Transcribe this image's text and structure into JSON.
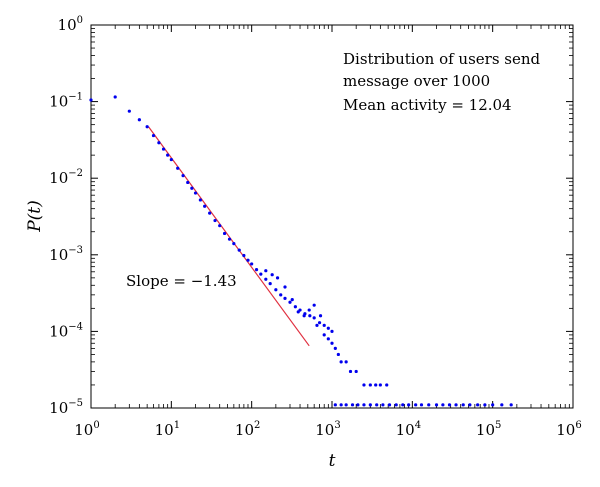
{
  "chart_data": {
    "type": "scatter",
    "xlabel": "t",
    "ylabel": "P(t)",
    "x_scale": "log",
    "y_scale": "log",
    "xlim": [
      1,
      1000000
    ],
    "ylim": [
      1e-05,
      1
    ],
    "grid": false,
    "x_tick_labels": [
      {
        "base": "10",
        "exp": "0"
      },
      {
        "base": "10",
        "exp": "1"
      },
      {
        "base": "10",
        "exp": "2"
      },
      {
        "base": "10",
        "exp": "3"
      },
      {
        "base": "10",
        "exp": "4"
      },
      {
        "base": "10",
        "exp": "5"
      },
      {
        "base": "10",
        "exp": "6"
      }
    ],
    "y_tick_labels": [
      {
        "base": "10",
        "exp": "−5"
      },
      {
        "base": "10",
        "exp": "−4"
      },
      {
        "base": "10",
        "exp": "−3"
      },
      {
        "base": "10",
        "exp": "−2"
      },
      {
        "base": "10",
        "exp": "−1"
      },
      {
        "base": "10",
        "exp": "0"
      }
    ],
    "annotations": {
      "title_line1": "Distribution of users send",
      "title_line2": "message over 1000",
      "mean": "Mean activity = 12.04",
      "slope": "Slope = −1.43"
    },
    "fit_line": {
      "slope": -1.43,
      "x_start": 5.2,
      "x_end": 520,
      "y_start": 0.047,
      "color": "#e03040"
    },
    "marker_color": "#0000ee",
    "series": [
      {
        "points": [
          [
            1.0,
            0.105
          ],
          [
            2.0,
            0.115
          ],
          [
            3.0,
            0.075
          ],
          [
            4.0,
            0.058
          ],
          [
            5.0,
            0.047
          ],
          [
            6,
            0.036
          ],
          [
            7,
            0.029
          ],
          [
            8,
            0.024
          ],
          [
            9,
            0.02
          ],
          [
            10,
            0.0175
          ],
          [
            12,
            0.0135
          ],
          [
            14,
            0.0108
          ],
          [
            16,
            0.0088
          ],
          [
            18,
            0.0074
          ],
          [
            20,
            0.0064
          ],
          [
            23,
            0.0052
          ],
          [
            26,
            0.0043
          ],
          [
            30,
            0.0035
          ],
          [
            35,
            0.0028
          ],
          [
            40,
            0.0024
          ],
          [
            46,
            0.0019
          ],
          [
            53,
            0.0016
          ],
          [
            60,
            0.0014
          ],
          [
            70,
            0.00115
          ],
          [
            80,
            0.00098
          ],
          [
            90,
            0.00085
          ],
          [
            100,
            0.00076
          ],
          [
            115,
            0.00064
          ],
          [
            130,
            0.00056
          ],
          [
            150,
            0.00048
          ],
          [
            170,
            0.00042
          ],
          [
            200,
            0.00035
          ],
          [
            230,
            0.0003
          ],
          [
            260,
            0.00027
          ],
          [
            300,
            0.00024
          ],
          [
            350,
            0.00021
          ],
          [
            400,
            0.00019
          ],
          [
            460,
            0.00017
          ],
          [
            530,
            0.00016
          ],
          [
            600,
            0.00015
          ],
          [
            700,
            0.00013
          ],
          [
            800,
            0.00012
          ],
          [
            900,
            0.00011
          ],
          [
            1000,
            0.0001
          ]
        ],
        "band_points": [
          [
            150,
            0.00062
          ],
          [
            180,
            0.00055
          ],
          [
            210,
            0.0005
          ],
          [
            260,
            0.00038
          ],
          [
            320,
            0.00026
          ],
          [
            380,
            0.00018
          ],
          [
            450,
            0.00016
          ],
          [
            520,
            0.00019
          ],
          [
            600,
            0.00022
          ],
          [
            650,
            0.00012
          ],
          [
            720,
            0.00016
          ],
          [
            800,
            9e-05
          ],
          [
            900,
            8e-05
          ],
          [
            1000,
            7e-05
          ],
          [
            1100,
            6e-05
          ],
          [
            1200,
            5e-05
          ],
          [
            1300,
            4e-05
          ],
          [
            1500,
            4e-05
          ],
          [
            1700,
            3e-05
          ],
          [
            2000,
            3e-05
          ],
          [
            2500,
            2e-05
          ],
          [
            3000,
            2e-05
          ],
          [
            3500,
            2e-05
          ],
          [
            4000,
            2e-05
          ],
          [
            4800,
            2e-05
          ]
        ],
        "floor_points": [
          [
            1100,
            1.1e-05
          ],
          [
            1300,
            1.1e-05
          ],
          [
            1500,
            1.1e-05
          ],
          [
            1800,
            1.1e-05
          ],
          [
            2100,
            1.1e-05
          ],
          [
            2500,
            1.1e-05
          ],
          [
            3000,
            1.1e-05
          ],
          [
            3600,
            1.1e-05
          ],
          [
            4300,
            1.1e-05
          ],
          [
            5200,
            1.1e-05
          ],
          [
            6300,
            1.1e-05
          ],
          [
            7600,
            1.1e-05
          ],
          [
            9000,
            1.1e-05
          ],
          [
            11000,
            1.1e-05
          ],
          [
            13000,
            1.1e-05
          ],
          [
            16000,
            1.1e-05
          ],
          [
            20000,
            1.1e-05
          ],
          [
            24000,
            1.1e-05
          ],
          [
            29000,
            1.1e-05
          ],
          [
            35000,
            1.1e-05
          ],
          [
            43000,
            1.1e-05
          ],
          [
            52000,
            1.1e-05
          ],
          [
            65000,
            1.1e-05
          ],
          [
            80000,
            1.1e-05
          ],
          [
            100000,
            1.1e-05
          ],
          [
            130000,
            1.1e-05
          ],
          [
            170000,
            1.1e-05
          ]
        ]
      }
    ]
  }
}
